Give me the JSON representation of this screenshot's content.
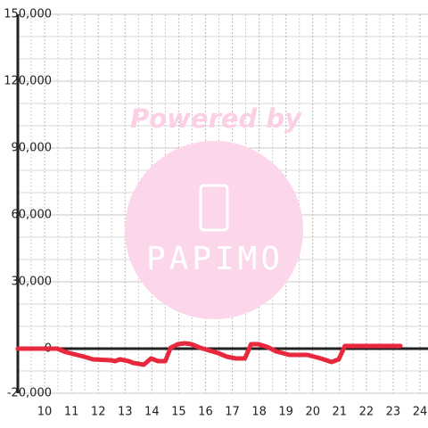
{
  "chart_data": {
    "type": "line",
    "annotations": [
      "Powered by",
      "PAPIMO"
    ],
    "x": [
      9.0,
      10.47,
      10.8,
      11.47,
      11.8,
      12.47,
      12.63,
      12.8,
      13.13,
      13.3,
      13.7,
      13.97,
      14.23,
      14.5,
      14.7,
      14.97,
      15.23,
      15.47,
      15.8,
      16.13,
      16.47,
      16.8,
      17.13,
      17.47,
      17.7,
      17.97,
      18.3,
      18.63,
      19.13,
      19.8,
      20.3,
      20.7,
      20.97,
      21.2,
      23.27
    ],
    "values": [
      0,
      0,
      -1600,
      -3600,
      -4800,
      -5200,
      -5600,
      -4800,
      -5600,
      -6400,
      -7200,
      -4400,
      -5600,
      -5600,
      400,
      2000,
      2400,
      2000,
      400,
      -800,
      -2000,
      -3600,
      -4400,
      -4400,
      2000,
      2000,
      800,
      -1200,
      -2800,
      -2800,
      -4400,
      -6000,
      -4800,
      1200,
      1200
    ],
    "color": "#e8283c",
    "xlim": [
      9,
      24.3
    ],
    "xticks": [
      10,
      11,
      12,
      13,
      14,
      15,
      16,
      17,
      18,
      19,
      20,
      21,
      22,
      23,
      24
    ],
    "ylim": [
      -20000,
      150000
    ],
    "yticks": [
      {
        "value": -20000,
        "label": "-20,000"
      },
      0,
      {
        "value": 30000,
        "label": "30,000"
      },
      {
        "value": 60000,
        "label": "60,000"
      },
      {
        "value": 90000,
        "label": "90,000"
      },
      {
        "value": 120000,
        "label": "120,000"
      },
      {
        "value": 150000,
        "label": "150,000"
      }
    ],
    "grid": true
  }
}
